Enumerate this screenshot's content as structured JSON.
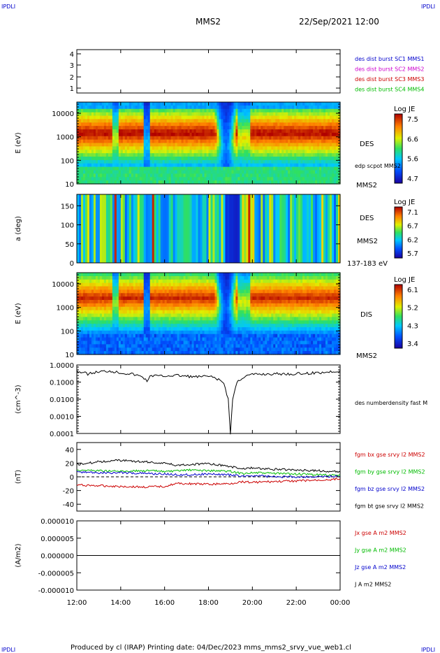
{
  "header": {
    "corner_left": "IPDLI",
    "corner_right": "IPDLI",
    "title": "MMS2",
    "date": "22/Sep/2021 12:00",
    "footer": "Produced by cl (IRAP)   Printing date: 04/Dec/2023   mms_mms2_srvy_vue_web1.cl",
    "footer_corner_left": "IPDLI",
    "footer_corner_right": "IPDLI"
  },
  "colors": {
    "blue": "#0000cc",
    "magenta": "#cc00cc",
    "red": "#cc0000",
    "green": "#00bb00",
    "black": "#000000"
  },
  "x_axis": {
    "ticks": [
      "12:00",
      "14:00",
      "16:00",
      "18:00",
      "20:00",
      "22:00",
      "00:00"
    ],
    "range_hours": [
      12,
      24
    ]
  },
  "panels": {
    "burst": {
      "yticks": [
        "4",
        "3",
        "2",
        "1"
      ],
      "legend": [
        {
          "text": "des dist burst SC1 MMS1",
          "color": "#0000cc"
        },
        {
          "text": "des dist burst SC2 MMS2",
          "color": "#cc00cc"
        },
        {
          "text": "des dist burst SC3 MMS3",
          "color": "#cc0000"
        },
        {
          "text": "des dist burst SC4 MMS4",
          "color": "#00bb00"
        }
      ]
    },
    "des_energy": {
      "ylabel": "E (eV)",
      "yticks": [
        "10000",
        "1000",
        "100",
        "10"
      ],
      "label": "DES",
      "sublabel": "MMS2",
      "overlay_label": "edp scpot MMS2",
      "colorbar": {
        "title": "Log JE",
        "ticks": [
          "7.5",
          "6.6",
          "5.6",
          "4.7"
        ]
      }
    },
    "des_pitch": {
      "ylabel": "a (deg)",
      "yticks": [
        "150",
        "100",
        "50",
        "0"
      ],
      "label": "DES",
      "sublabel": "MMS2",
      "energy_range": "137-183 eV",
      "colorbar": {
        "title": "Log JE",
        "ticks": [
          "7.1",
          "6.7",
          "6.2",
          "5.7"
        ]
      }
    },
    "dis_energy": {
      "ylabel": "E (eV)",
      "yticks": [
        "10000",
        "1000",
        "100",
        "10"
      ],
      "label": "DIS",
      "sublabel": "MMS2",
      "colorbar": {
        "title": "Log JE",
        "ticks": [
          "6.1",
          "5.2",
          "4.3",
          "3.4"
        ]
      }
    },
    "density": {
      "ylabel": "(cm^-3)",
      "yticks": [
        "1.0000",
        "0.1000",
        "0.0100",
        "0.0010",
        "0.0001"
      ],
      "legend": [
        {
          "text": "des numberdensity fast M",
          "color": "#000000"
        }
      ]
    },
    "bfield": {
      "ylabel": "(nT)",
      "yticks": [
        "40",
        "20",
        "0",
        "-20",
        "-40"
      ],
      "legend": [
        {
          "text": "fgm bx gse srvy l2 MMS2",
          "color": "#cc0000"
        },
        {
          "text": "fgm by gse srvy l2 MMS2",
          "color": "#00bb00"
        },
        {
          "text": "fgm bz gse srvy l2 MMS2",
          "color": "#0000cc"
        },
        {
          "text": "fgm bt gse srvy l2 MMS2",
          "color": "#000000"
        }
      ]
    },
    "current": {
      "ylabel": "(A/m2)",
      "yticks": [
        "0.000010",
        "0.000005",
        "0.000000",
        "-0.000005",
        "-0.000010"
      ],
      "legend": [
        {
          "text": "Jx gse A m2 MMS2",
          "color": "#cc0000"
        },
        {
          "text": "Jy gse A m2 MMS2",
          "color": "#00bb00"
        },
        {
          "text": "Jz gse A m2 MMS2",
          "color": "#0000cc"
        },
        {
          "text": "J A m2 MMS2",
          "color": "#000000"
        }
      ]
    }
  },
  "chart_data": [
    {
      "type": "line",
      "title": "des numberdensity fast M",
      "ylabel": "(cm^-3)",
      "yscale": "log",
      "ylim": [
        0.0001,
        1.0
      ],
      "x_hours": [
        12.0,
        12.5,
        13.0,
        13.5,
        14.0,
        14.5,
        15.0,
        15.2,
        15.4,
        15.8,
        16.5,
        17.0,
        17.5,
        18.0,
        18.4,
        18.7,
        18.9,
        19.0,
        19.1,
        19.3,
        19.6,
        20.0,
        21.0,
        22.0,
        23.0,
        24.0
      ],
      "values": [
        0.45,
        0.3,
        0.4,
        0.45,
        0.35,
        0.3,
        0.2,
        0.12,
        0.25,
        0.22,
        0.25,
        0.22,
        0.2,
        0.22,
        0.15,
        0.09,
        0.01,
        0.0001,
        0.01,
        0.1,
        0.2,
        0.28,
        0.3,
        0.3,
        0.35,
        0.45
      ]
    },
    {
      "type": "line",
      "ylabel": "(nT)",
      "ylim": [
        -50,
        50
      ],
      "x_hours": [
        12.0,
        13.0,
        14.0,
        15.0,
        16.0,
        16.5,
        17.0,
        18.0,
        19.0,
        19.5,
        20.0,
        21.0,
        22.0,
        23.0,
        24.0
      ],
      "series": [
        {
          "name": "fgm bx gse srvy l2 MMS2",
          "color": "#cc0000",
          "values": [
            -12,
            -13,
            -14,
            -15,
            -14,
            -10,
            -10,
            -11,
            -10,
            -7,
            -8,
            -7,
            -6,
            -5,
            -3
          ]
        },
        {
          "name": "fgm by gse srvy l2 MMS2",
          "color": "#00bb00",
          "values": [
            10,
            9,
            8,
            9,
            8,
            8,
            10,
            9,
            8,
            5,
            6,
            5,
            4,
            3,
            2
          ]
        },
        {
          "name": "fgm bz gse srvy l2 MMS2",
          "color": "#0000cc",
          "values": [
            7,
            6,
            6,
            5,
            4,
            3,
            3,
            4,
            3,
            1,
            2,
            0,
            0,
            0,
            1
          ]
        },
        {
          "name": "fgm bt gse srvy l2 MMS2",
          "color": "#000000",
          "values": [
            18,
            22,
            24,
            22,
            20,
            17,
            18,
            19,
            15,
            12,
            13,
            11,
            10,
            9,
            7
          ]
        }
      ]
    },
    {
      "type": "line",
      "ylabel": "(A/m2)",
      "ylim": [
        -1e-05,
        1e-05
      ],
      "x_hours": [
        12.0,
        24.0
      ],
      "series": [
        {
          "name": "J A m2 MMS2",
          "color": "#000000",
          "values": [
            0.0,
            0.0
          ]
        }
      ]
    },
    {
      "type": "heatmap",
      "title": "DES",
      "ylabel": "E (eV)",
      "yscale": "log",
      "ylim": [
        10,
        30000
      ],
      "colorbar_title": "Log JE",
      "colorbar_range": [
        4.7,
        7.6
      ]
    },
    {
      "type": "heatmap",
      "title": "DES",
      "ylabel": "a (deg)",
      "ylim": [
        0,
        180
      ],
      "colorbar_title": "Log JE",
      "colorbar_range": [
        5.7,
        7.2
      ]
    },
    {
      "type": "heatmap",
      "title": "DIS",
      "ylabel": "E (eV)",
      "yscale": "log",
      "ylim": [
        10,
        30000
      ],
      "colorbar_title": "Log JE",
      "colorbar_range": [
        3.4,
        6.2
      ]
    }
  ]
}
